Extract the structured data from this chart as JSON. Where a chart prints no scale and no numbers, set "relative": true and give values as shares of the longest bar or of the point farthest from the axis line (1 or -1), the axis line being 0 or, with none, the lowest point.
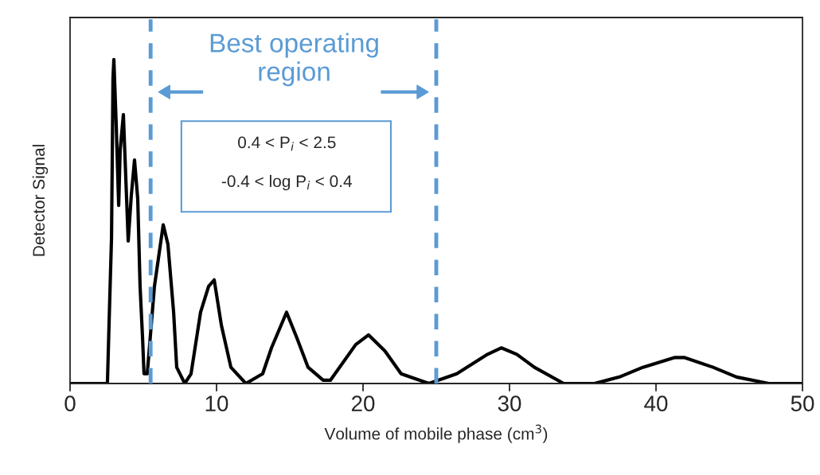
{
  "chart_data": {
    "type": "line",
    "relative": true,
    "xlabel": "Volume of mobile phase (cm$^{3}$)",
    "ylabel": "Detector Signal",
    "xlim": [
      0,
      50
    ],
    "xticks": [
      0,
      10,
      20,
      30,
      40,
      50
    ],
    "grid": false,
    "marker": "none",
    "line_style": "solid",
    "annotations": [
      "Best operating\nregion",
      "0.4 < P$_{i}$ < 2.5",
      "-0.4 < log P$_{i}$ < 0.4"
    ],
    "ref_lines": [
      {
        "axis": "x",
        "value": 5.5,
        "color": "#5b9bd5",
        "line_style": "dashed"
      },
      {
        "axis": "x",
        "value": 25,
        "color": "#5b9bd5",
        "line_style": "dashed"
      }
    ],
    "series": [
      {
        "color": "#000000",
        "x": [
          0,
          2.55,
          2.66,
          2.83,
          2.88,
          2.93,
          2.99,
          3.15,
          3.32,
          3.42,
          3.64,
          3.75,
          3.97,
          4.18,
          4.4,
          4.62,
          4.78,
          4.95,
          5.05,
          5.27,
          5.76,
          6.36,
          6.68,
          7.07,
          7.28,
          7.83,
          8.26,
          8.91,
          9.46,
          9.84,
          10.33,
          10.98,
          12.0,
          13.15,
          13.75,
          14.78,
          15.49,
          16.25,
          17.28,
          17.77,
          19.5,
          20.38,
          21.5,
          22.6,
          24.5,
          26.4,
          28.5,
          29.45,
          30.5,
          31.7,
          33.7,
          35.8,
          37.5,
          39.1,
          41.25,
          41.96,
          43.9,
          45.5,
          47.7,
          50
        ],
        "values": [
          0,
          0,
          0.18,
          0.45,
          0.69,
          0.94,
          1.0,
          0.8,
          0.55,
          0.72,
          0.83,
          0.7,
          0.44,
          0.58,
          0.69,
          0.57,
          0.3,
          0.14,
          0.03,
          0.03,
          0.3,
          0.49,
          0.43,
          0.22,
          0.05,
          0,
          0.03,
          0.22,
          0.3,
          0.32,
          0.18,
          0.05,
          0,
          0.03,
          0.11,
          0.22,
          0.14,
          0.05,
          0.01,
          0.01,
          0.12,
          0.15,
          0.1,
          0.03,
          0,
          0.03,
          0.09,
          0.11,
          0.09,
          0.05,
          0,
          0,
          0.02,
          0.05,
          0.08,
          0.08,
          0.05,
          0.02,
          0,
          0
        ]
      }
    ]
  }
}
